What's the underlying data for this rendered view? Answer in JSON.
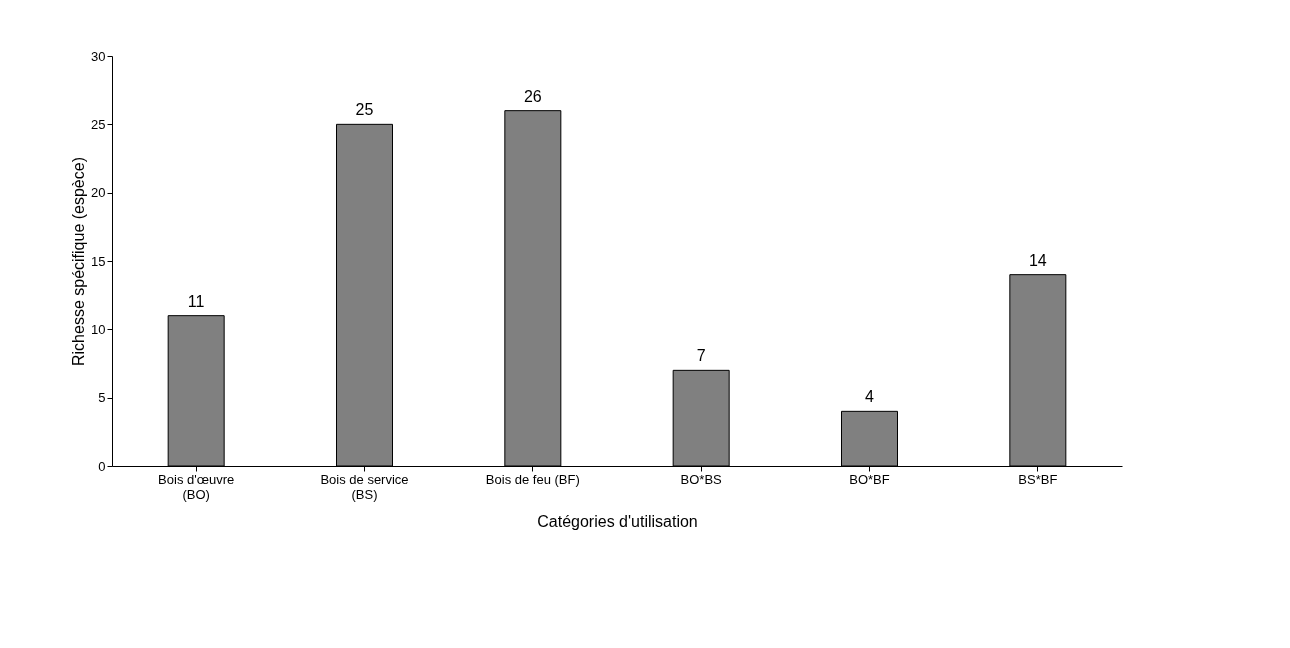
{
  "chart_data": {
    "type": "bar",
    "xlabel": "Catégories d'utilisation",
    "ylabel": "Richesse spécifique (espèce)",
    "categories": [
      "Bois d'œuvre (BO)",
      "Bois de service (BS)",
      "Bois de feu (BF)",
      "BO*BS",
      "BO*BF",
      "BS*BF"
    ],
    "values": [
      11,
      25,
      26,
      7,
      4,
      14
    ],
    "color": "#808080",
    "ylim": [
      0,
      30
    ],
    "yticks": [
      0,
      5,
      10,
      15,
      20,
      25,
      30
    ],
    "grid": false,
    "data_labels": true
  }
}
